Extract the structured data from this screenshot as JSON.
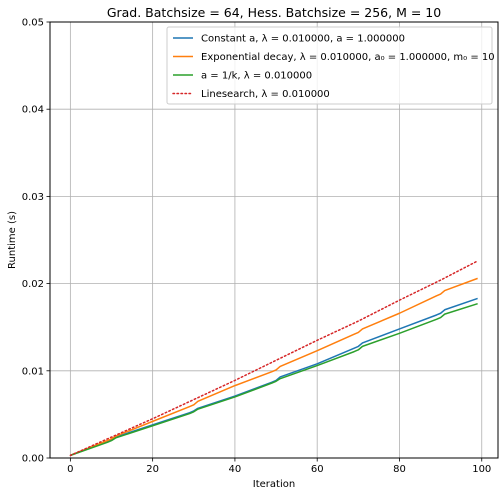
{
  "chart_data": {
    "type": "line",
    "title": "Grad. Batchsize = 64, Hess. Batchsize = 256, M = 10",
    "xlabel": "Iteration",
    "ylabel": "Runtime (s)",
    "xlim": [
      -4.95,
      103.95
    ],
    "ylim": [
      0.0,
      0.05
    ],
    "xticks": [
      0,
      20,
      40,
      60,
      80,
      100
    ],
    "yticks": [
      0.0,
      0.01,
      0.02,
      0.03,
      0.04,
      0.05
    ],
    "xtick_labels": [
      "0",
      "20",
      "40",
      "60",
      "80",
      "100"
    ],
    "ytick_labels": [
      "0.00",
      "0.01",
      "0.02",
      "0.03",
      "0.04",
      "0.05"
    ],
    "grid": true,
    "legend_position": "top-right",
    "series": [
      {
        "name": "Constant a, λ = 0.010000, a = 1.000000",
        "color": "#1f77b4",
        "linestyle": "solid",
        "x": [
          0,
          9,
          10,
          11,
          20,
          29,
          30,
          31,
          40,
          49,
          50,
          51,
          60,
          69,
          70,
          71,
          80,
          89,
          90,
          91,
          99
        ],
        "y": [
          0.0003,
          0.0019,
          0.0021,
          0.0024,
          0.0038,
          0.0052,
          0.0054,
          0.0057,
          0.0071,
          0.0087,
          0.0089,
          0.0093,
          0.0108,
          0.0126,
          0.0128,
          0.0132,
          0.0148,
          0.0164,
          0.0166,
          0.017,
          0.0183
        ]
      },
      {
        "name": "Exponential decay, λ = 0.010000, a₀ = 1.000000, m₀ = 10",
        "color": "#ff7f0e",
        "linestyle": "solid",
        "x": [
          0,
          9,
          10,
          11,
          20,
          29,
          30,
          31,
          40,
          49,
          50,
          51,
          60,
          69,
          70,
          71,
          80,
          89,
          90,
          91,
          99
        ],
        "y": [
          0.0003,
          0.002,
          0.0022,
          0.0025,
          0.0042,
          0.0059,
          0.0061,
          0.0065,
          0.0083,
          0.0099,
          0.0101,
          0.0105,
          0.0123,
          0.0142,
          0.0144,
          0.0148,
          0.0166,
          0.0186,
          0.0188,
          0.0192,
          0.0206
        ]
      },
      {
        "name": "a = 1/k, λ = 0.010000",
        "color": "#2ca02c",
        "linestyle": "solid",
        "x": [
          0,
          9,
          10,
          11,
          20,
          29,
          30,
          31,
          40,
          49,
          50,
          51,
          60,
          69,
          70,
          71,
          80,
          89,
          90,
          91,
          99
        ],
        "y": [
          0.0003,
          0.0018,
          0.002,
          0.0023,
          0.0037,
          0.0051,
          0.0053,
          0.0056,
          0.007,
          0.0086,
          0.0088,
          0.0091,
          0.0106,
          0.0122,
          0.0124,
          0.0128,
          0.0143,
          0.0159,
          0.0161,
          0.0165,
          0.0177
        ]
      },
      {
        "name": "Linesearch, λ = 0.010000",
        "color": "#d62728",
        "linestyle": "dotted",
        "x": [
          0,
          10,
          20,
          30,
          40,
          50,
          60,
          70,
          80,
          90,
          99
        ],
        "y": [
          0.0003,
          0.0024,
          0.0045,
          0.0067,
          0.0089,
          0.0112,
          0.0135,
          0.0157,
          0.0181,
          0.0204,
          0.0226
        ]
      }
    ]
  }
}
